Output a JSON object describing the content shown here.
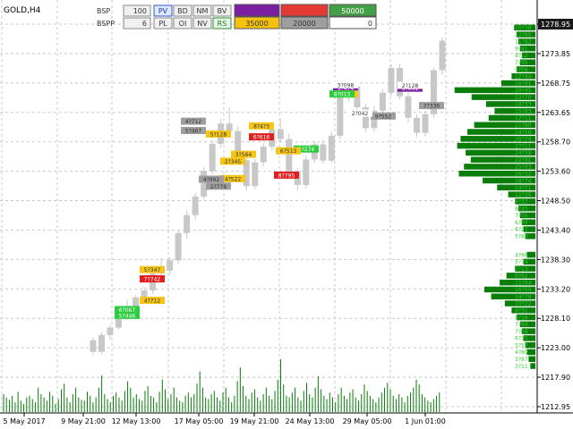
{
  "symbol_label": "GOLD,H4",
  "panel": {
    "row1": {
      "label": "BSP",
      "value": "100",
      "buttons": [
        "PV",
        "BD",
        "NM",
        "BV"
      ],
      "active_button": "PV",
      "boxes": [
        {
          "text": "",
          "color": "#7b1fa2",
          "text_color": "#ffffff"
        },
        {
          "text": "",
          "color": "#e53935",
          "text_color": "#ffffff"
        },
        {
          "text": "50000",
          "color": "#43a047",
          "text_color": "#ffffff"
        }
      ]
    },
    "row2": {
      "label": "BSPP",
      "value": "6",
      "buttons": [
        "PL",
        "OI",
        "NV",
        "RS"
      ],
      "active_button": "RS",
      "boxes": [
        {
          "text": "35000",
          "color": "#f4c20d",
          "text_color": "#333333"
        },
        {
          "text": "20000",
          "color": "#9e9e9e",
          "text_color": "#333333"
        },
        {
          "text": "0",
          "color": "#ffffff",
          "text_color": "#333333"
        }
      ]
    }
  },
  "colors": {
    "candle": "#c8c8c8",
    "grid": "#c8c8c8",
    "volume": "#0a7d0a",
    "profile": "#0a7d0a",
    "profile_label": "#33cc33",
    "current_price_bg": "#1a1a1a",
    "tag_green": "#2ecc40",
    "tag_yellow": "#f5c518",
    "tag_grey": "#9e9e9e",
    "tag_red": "#e02020",
    "tag_purple": "#7b1fa2",
    "tag_white": "#ffffff"
  },
  "chart_data": {
    "type": "candlestick",
    "y_ticks": [
      "1278.95",
      "1273.85",
      "1268.75",
      "1263.65",
      "1258.70",
      "1253.60",
      "1248.50",
      "1243.40",
      "1238.30",
      "1233.20",
      "1228.10",
      "1223.00",
      "1217.90",
      "1212.95"
    ],
    "current_price": "1278.95",
    "x_ticks": [
      "5 May 2017",
      "9 May 21:00",
      "12 May 13:00",
      "17 May 05:00",
      "19 May 21:00",
      "24 May 13:00",
      "29 May 05:00",
      "1 Jun 01:00"
    ],
    "ylim": [
      1212.95,
      1278.95
    ],
    "grid": true,
    "profile_side": "right",
    "price_tags": [
      {
        "text": "5?474",
        "color": "tag_purple",
        "price": 1267.9
      },
      {
        "text": "9?091",
        "color": "tag_purple",
        "price": 1267.9
      },
      {
        "text": "1?567",
        "color": "tag_yellow",
        "price": 1266.9
      },
      {
        "text": "8?013",
        "color": "tag_green",
        "price": 1266.9
      },
      {
        "text": "6?616",
        "color": "tag_red",
        "price": 1259.5
      },
      {
        "text": "8?4?3",
        "color": "tag_yellow",
        "price": 1261.4
      },
      {
        "text": "5?128",
        "color": "tag_yellow",
        "price": 1260.0
      },
      {
        "text": "5?274",
        "color": "tag_green",
        "price": 1257.4
      },
      {
        "text": "8?795",
        "color": "tag_red",
        "price": 1252.9
      },
      {
        "text": "5?347",
        "color": "tag_yellow",
        "price": 1236.6
      },
      {
        "text": "7?742",
        "color": "tag_red",
        "price": 1235.0
      },
      {
        "text": "6?067",
        "color": "tag_green",
        "price": 1229.7
      },
      {
        "text": "5?446",
        "color": "tag_green",
        "price": 1228.7
      },
      {
        "text": "4?712",
        "color": "tag_yellow",
        "price": 1231.3
      },
      {
        "text": "4?522",
        "color": "tag_yellow",
        "price": 1252.3
      },
      {
        "text": "2?345",
        "color": "tag_yellow",
        "price": 1255.3
      },
      {
        "text": "3?564",
        "color": "tag_yellow",
        "price": 1256.5
      },
      {
        "text": "2?776",
        "color": "tag_grey",
        "price": 1251.0
      },
      {
        "text": "4?712",
        "color": "tag_grey",
        "price": 1262.2
      },
      {
        "text": "5?467",
        "color": "tag_grey",
        "price": 1260.6
      },
      {
        "text": "6?513",
        "color": "tag_yellow",
        "price": 1257.1
      },
      {
        "text": "4?992",
        "color": "tag_grey",
        "price": 1252.2
      },
      {
        "text": "9?552",
        "color": "tag_grey",
        "price": 1263.1
      },
      {
        "text": "2?042",
        "color": "tag_white",
        "price": 1263.6
      },
      {
        "text": "3?098",
        "color": "tag_white",
        "price": 1268.5
      },
      {
        "text": "7?336",
        "color": "tag_grey",
        "price": 1264.9
      },
      {
        "text": "2?128",
        "color": "tag_white",
        "price": 1268.4
      }
    ],
    "volume_profile": [
      {
        "price": 1278.4,
        "w": 0.25,
        "label": "10?38"
      },
      {
        "price": 1277.2,
        "w": 0.22,
        "label": "12?65"
      },
      {
        "price": 1276.0,
        "w": 0.2,
        "label": "11?82"
      },
      {
        "price": 1274.8,
        "w": 0.18,
        "label": "9?41"
      },
      {
        "price": 1273.6,
        "w": 0.16,
        "label": "8?12"
      },
      {
        "price": 1272.4,
        "w": 0.18,
        "label": "7?95"
      },
      {
        "price": 1271.2,
        "w": 0.22,
        "label": "9?06"
      },
      {
        "price": 1270.0,
        "w": 0.28,
        "label": "12?44"
      },
      {
        "price": 1268.8,
        "w": 0.4,
        "label": "16?91"
      },
      {
        "price": 1267.6,
        "w": 0.95,
        "label": "29?45"
      },
      {
        "price": 1266.4,
        "w": 0.75,
        "label": "22?70"
      },
      {
        "price": 1265.2,
        "w": 0.58,
        "label": "18?33"
      },
      {
        "price": 1264.0,
        "w": 0.48,
        "label": "15?83"
      },
      {
        "price": 1262.8,
        "w": 0.55,
        "label": "17?11"
      },
      {
        "price": 1261.6,
        "w": 0.72,
        "label": "21?90"
      },
      {
        "price": 1260.4,
        "w": 0.8,
        "label": "24?56"
      },
      {
        "price": 1259.2,
        "w": 0.88,
        "label": "26?74"
      },
      {
        "price": 1258.0,
        "w": 0.92,
        "label": "27?11"
      },
      {
        "price": 1256.8,
        "w": 0.82,
        "label": "24?39"
      },
      {
        "price": 1255.6,
        "w": 0.76,
        "label": "22?81"
      },
      {
        "price": 1254.4,
        "w": 0.84,
        "label": "25?03"
      },
      {
        "price": 1253.2,
        "w": 0.9,
        "label": "26?32"
      },
      {
        "price": 1252.0,
        "w": 0.62,
        "label": "18?74"
      },
      {
        "price": 1250.8,
        "w": 0.45,
        "label": "14?21"
      },
      {
        "price": 1249.6,
        "w": 0.32,
        "label": "11?35"
      },
      {
        "price": 1248.4,
        "w": 0.24,
        "label": "9?37"
      },
      {
        "price": 1247.2,
        "w": 0.2,
        "label": "8?45"
      },
      {
        "price": 1246.0,
        "w": 0.18,
        "label": "7?05"
      },
      {
        "price": 1244.8,
        "w": 0.16,
        "label": "6?60"
      },
      {
        "price": 1243.6,
        "w": 0.14,
        "label": "6?11"
      },
      {
        "price": 1242.4,
        "w": 0.12,
        "label": "5?80"
      },
      {
        "price": 1239.2,
        "w": 0.1,
        "label": "4?98"
      },
      {
        "price": 1238.0,
        "w": 0.14,
        "label": "5?79"
      },
      {
        "price": 1236.8,
        "w": 0.24,
        "label": "7?13"
      },
      {
        "price": 1235.6,
        "w": 0.34,
        "label": "9?62"
      },
      {
        "price": 1234.4,
        "w": 0.42,
        "label": "11?04"
      },
      {
        "price": 1233.2,
        "w": 0.6,
        "label": "16?55"
      },
      {
        "price": 1232.0,
        "w": 0.52,
        "label": "14?79"
      },
      {
        "price": 1230.8,
        "w": 0.36,
        "label": "10?22"
      },
      {
        "price": 1229.6,
        "w": 0.28,
        "label": "9?31"
      },
      {
        "price": 1228.4,
        "w": 0.22,
        "label": "8?16"
      },
      {
        "price": 1227.2,
        "w": 0.18,
        "label": "7?88"
      },
      {
        "price": 1226.0,
        "w": 0.16,
        "label": "7?08"
      },
      {
        "price": 1224.8,
        "w": 0.14,
        "label": "6?15"
      },
      {
        "price": 1223.6,
        "w": 0.12,
        "label": "5?57"
      },
      {
        "price": 1222.4,
        "w": 0.1,
        "label": "4?89"
      },
      {
        "price": 1221.2,
        "w": 0.08,
        "label": "3?97"
      },
      {
        "price": 1220.0,
        "w": 0.06,
        "label": "3?11"
      }
    ],
    "candles": [
      {
        "o": 1224.4,
        "h": 1224.9,
        "l": 1221.8,
        "c": 1222.4
      },
      {
        "o": 1222.4,
        "h": 1225.8,
        "l": 1222.0,
        "c": 1225.3
      },
      {
        "o": 1225.3,
        "h": 1227.1,
        "l": 1224.5,
        "c": 1226.6
      },
      {
        "o": 1226.6,
        "h": 1230.1,
        "l": 1226.2,
        "c": 1229.6
      },
      {
        "o": 1229.6,
        "h": 1231.4,
        "l": 1227.9,
        "c": 1228.4
      },
      {
        "o": 1228.4,
        "h": 1232.2,
        "l": 1228.1,
        "c": 1231.8
      },
      {
        "o": 1231.8,
        "h": 1233.6,
        "l": 1231.0,
        "c": 1233.0
      },
      {
        "o": 1233.0,
        "h": 1236.4,
        "l": 1232.5,
        "c": 1235.9
      },
      {
        "o": 1235.9,
        "h": 1238.6,
        "l": 1235.0,
        "c": 1236.4
      },
      {
        "o": 1236.4,
        "h": 1238.7,
        "l": 1235.8,
        "c": 1238.2
      },
      {
        "o": 1238.2,
        "h": 1243.5,
        "l": 1237.6,
        "c": 1242.9
      },
      {
        "o": 1242.9,
        "h": 1246.8,
        "l": 1242.0,
        "c": 1246.0
      },
      {
        "o": 1246.0,
        "h": 1249.8,
        "l": 1245.2,
        "c": 1249.2
      },
      {
        "o": 1249.2,
        "h": 1254.3,
        "l": 1248.7,
        "c": 1253.6
      },
      {
        "o": 1253.6,
        "h": 1258.9,
        "l": 1253.0,
        "c": 1258.3
      },
      {
        "o": 1258.3,
        "h": 1262.6,
        "l": 1257.6,
        "c": 1261.8
      },
      {
        "o": 1261.8,
        "h": 1264.6,
        "l": 1259.7,
        "c": 1260.5
      },
      {
        "o": 1260.5,
        "h": 1261.3,
        "l": 1254.9,
        "c": 1255.5
      },
      {
        "o": 1255.5,
        "h": 1256.1,
        "l": 1250.2,
        "c": 1251.0
      },
      {
        "o": 1251.0,
        "h": 1255.7,
        "l": 1250.4,
        "c": 1255.1
      },
      {
        "o": 1255.1,
        "h": 1258.4,
        "l": 1254.4,
        "c": 1257.8
      },
      {
        "o": 1257.8,
        "h": 1261.5,
        "l": 1257.1,
        "c": 1260.8
      },
      {
        "o": 1260.8,
        "h": 1262.6,
        "l": 1258.5,
        "c": 1259.1
      },
      {
        "o": 1259.1,
        "h": 1260.0,
        "l": 1252.9,
        "c": 1253.6
      },
      {
        "o": 1253.6,
        "h": 1254.2,
        "l": 1250.3,
        "c": 1251.2
      },
      {
        "o": 1251.2,
        "h": 1256.2,
        "l": 1250.6,
        "c": 1255.6
      },
      {
        "o": 1255.6,
        "h": 1258.8,
        "l": 1255.0,
        "c": 1258.2
      },
      {
        "o": 1258.2,
        "h": 1259.0,
        "l": 1254.8,
        "c": 1255.4
      },
      {
        "o": 1255.4,
        "h": 1260.4,
        "l": 1255.0,
        "c": 1259.7
      },
      {
        "o": 1259.7,
        "h": 1266.8,
        "l": 1259.0,
        "c": 1266.3
      },
      {
        "o": 1266.3,
        "h": 1268.9,
        "l": 1265.6,
        "c": 1268.2
      },
      {
        "o": 1268.2,
        "h": 1268.8,
        "l": 1264.0,
        "c": 1264.6
      },
      {
        "o": 1264.6,
        "h": 1265.2,
        "l": 1260.3,
        "c": 1261.0
      },
      {
        "o": 1261.0,
        "h": 1264.8,
        "l": 1260.4,
        "c": 1264.0
      },
      {
        "o": 1264.0,
        "h": 1267.7,
        "l": 1263.4,
        "c": 1267.1
      },
      {
        "o": 1267.1,
        "h": 1272.0,
        "l": 1266.5,
        "c": 1271.4
      },
      {
        "o": 1271.4,
        "h": 1272.1,
        "l": 1265.9,
        "c": 1266.5
      },
      {
        "o": 1266.5,
        "h": 1267.1,
        "l": 1262.0,
        "c": 1262.8
      },
      {
        "o": 1262.8,
        "h": 1263.4,
        "l": 1259.5,
        "c": 1260.2
      },
      {
        "o": 1260.2,
        "h": 1264.0,
        "l": 1259.6,
        "c": 1263.4
      },
      {
        "o": 1263.4,
        "h": 1271.5,
        "l": 1262.8,
        "c": 1271.0
      },
      {
        "o": 1271.0,
        "h": 1276.7,
        "l": 1270.2,
        "c": 1276.1
      }
    ],
    "volumes": [
      0.22,
      0.18,
      0.15,
      0.2,
      0.12,
      0.25,
      0.14,
      0.1,
      0.18,
      0.2,
      0.16,
      0.12,
      0.3,
      0.22,
      0.18,
      0.14,
      0.25,
      0.2,
      0.1,
      0.16,
      0.28,
      0.35,
      0.18,
      0.12,
      0.22,
      0.3,
      0.18,
      0.15,
      0.14,
      0.25,
      0.2,
      0.12,
      0.18,
      0.3,
      0.45,
      0.22,
      0.16,
      0.12,
      0.2,
      0.24,
      0.18,
      0.14,
      0.26,
      0.38,
      0.3,
      0.18,
      0.22,
      0.16,
      0.14,
      0.26,
      0.32,
      0.2,
      0.18,
      0.12,
      0.25,
      0.4,
      0.28,
      0.16,
      0.22,
      0.3,
      0.18,
      0.14,
      0.12,
      0.2,
      0.24,
      0.18,
      0.22,
      0.35,
      0.5,
      0.3,
      0.18,
      0.16,
      0.22,
      0.26,
      0.18,
      0.14,
      0.24,
      0.3,
      0.18,
      0.12,
      0.2,
      0.38,
      0.55,
      0.32,
      0.2,
      0.16,
      0.24,
      0.28,
      0.18,
      0.14,
      0.22,
      0.3,
      0.2,
      0.16,
      0.26,
      0.4,
      0.65,
      0.34,
      0.2,
      0.18,
      0.24,
      0.3,
      0.18,
      0.14,
      0.26,
      0.36,
      0.22,
      0.18,
      0.3,
      0.44,
      0.28,
      0.2,
      0.16,
      0.24,
      0.18,
      0.12,
      0.22,
      0.3,
      0.2,
      0.16,
      0.24,
      0.28,
      0.18,
      0.14,
      0.22,
      0.34,
      0.26,
      0.2,
      0.16,
      0.12,
      0.18,
      0.24,
      0.3,
      0.36,
      0.28,
      0.2,
      0.16,
      0.22,
      0.18,
      0.12,
      0.2,
      0.24,
      0.3,
      0.4,
      0.34,
      0.22,
      0.18,
      0.14,
      0.12,
      0.16,
      0.2,
      0.24
    ]
  }
}
